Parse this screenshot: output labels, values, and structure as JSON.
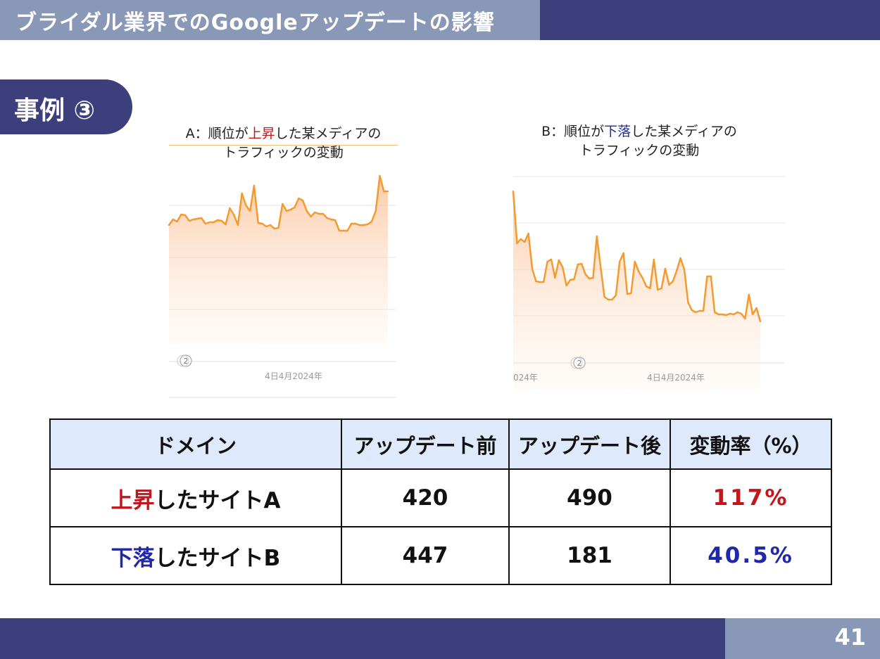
{
  "header": {
    "title": "ブライダル業界でのGoogleアップデートの影響"
  },
  "case": {
    "label": "事例 ③"
  },
  "chart_data": [
    {
      "type": "area",
      "title_parts": [
        "A：順位が",
        "上昇",
        "した某メディアの"
      ],
      "title_line2": "トラフィックの変動",
      "x_tick": "4日4月2024年",
      "badge": "2",
      "y": [
        320,
        312,
        315,
        305,
        306,
        314,
        312,
        311,
        310,
        318,
        316,
        316,
        313,
        314,
        319,
        296,
        305,
        320,
        275,
        292,
        300,
        264,
        317,
        318,
        322,
        320,
        325,
        324,
        290,
        300,
        298,
        295,
        282,
        285,
        300,
        308,
        302,
        304,
        304,
        310,
        312,
        313,
        328,
        328,
        328,
        318,
        318,
        320,
        320,
        319,
        315,
        300,
        250,
        272,
        272
      ],
      "ylim": [
        210,
        490
      ],
      "color": "#f59a2e"
    },
    {
      "type": "area",
      "title_parts": [
        "B：順位が",
        "下落",
        "した某メディアの"
      ],
      "title_line2": "トラフィックの変動",
      "x_tick_left": "024年",
      "x_tick": "4日4月2024年",
      "badge": "2",
      "y": [
        272,
        346,
        340,
        344,
        332,
        382,
        400,
        401,
        401,
        372,
        369,
        395,
        370,
        380,
        406,
        398,
        397,
        376,
        375,
        390,
        396,
        395,
        336,
        380,
        422,
        426,
        426,
        420,
        372,
        360,
        418,
        417,
        372,
        386,
        395,
        407,
        410,
        369,
        412,
        410,
        382,
        405,
        400,
        385,
        367,
        383,
        430,
        441,
        444,
        442,
        442,
        393,
        393,
        444,
        447,
        447,
        448,
        446,
        447,
        444,
        446,
        453,
        419,
        447,
        438,
        457
      ],
      "ylim": [
        250,
        560
      ],
      "color": "#f59a2e"
    }
  ],
  "table": {
    "headers": [
      "ドメイン",
      "アップデート前",
      "アップデート後",
      "変動率（%）"
    ],
    "rows": [
      {
        "domain_highlight": "上昇",
        "domain_rest": "したサイトA",
        "before": "420",
        "after": "490",
        "rate": "117%"
      },
      {
        "domain_highlight": "下落",
        "domain_rest": "したサイトB",
        "before": "447",
        "after": "181",
        "rate": "40.5%"
      }
    ]
  },
  "footer": {
    "page_number": "41"
  }
}
